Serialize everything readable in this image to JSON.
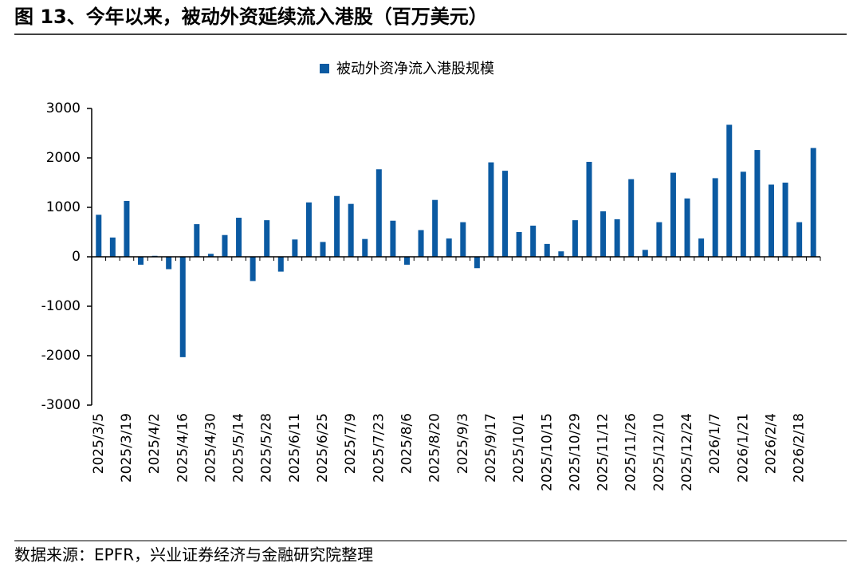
{
  "chart_data": {
    "type": "bar",
    "title": "图 13、今年以来，被动外资延续流入港股（百万美元）",
    "source": "数据来源：EPFR，兴业证券经济与金融研究院整理",
    "categories": [
      "2025/3/5",
      null,
      "2025/3/19",
      null,
      "2025/4/2",
      null,
      "2025/4/16",
      null,
      "2025/4/30",
      null,
      "2025/5/14",
      null,
      "2025/5/28",
      null,
      "2025/6/11",
      null,
      "2025/6/25",
      null,
      "2025/7/9",
      null,
      "2025/7/23",
      null,
      "2025/8/6",
      null,
      "2025/8/20",
      null,
      "2025/9/3",
      null,
      "2025/9/17",
      null,
      "2025/10/1",
      null,
      "2025/10/15",
      null,
      "2025/10/29",
      null,
      "2025/11/12",
      null,
      "2025/11/26",
      null,
      "2025/12/10",
      null,
      "2025/12/24",
      null,
      "2026/1/7",
      null,
      "2026/1/21",
      null,
      "2026/2/4",
      null,
      "2026/2/18",
      null
    ],
    "series": [
      {
        "name": "被动外资净流入港股规模",
        "color": "#0b5aa2",
        "values": [
          850,
          390,
          1130,
          -160,
          20,
          -250,
          -2030,
          660,
          60,
          440,
          790,
          -490,
          740,
          -300,
          350,
          1100,
          300,
          1230,
          1070,
          360,
          1770,
          730,
          -160,
          540,
          1150,
          370,
          700,
          -230,
          1910,
          1740,
          500,
          630,
          260,
          110,
          740,
          1920,
          920,
          760,
          1570,
          140,
          700,
          1700,
          1180,
          370,
          1590,
          2670,
          1720,
          2160,
          1460,
          1500,
          700,
          2200
        ]
      }
    ],
    "ylim": [
      -3000,
      3000
    ],
    "yticks": [
      -3000,
      -2000,
      -1000,
      0,
      1000,
      2000,
      3000
    ],
    "grid": false
  }
}
